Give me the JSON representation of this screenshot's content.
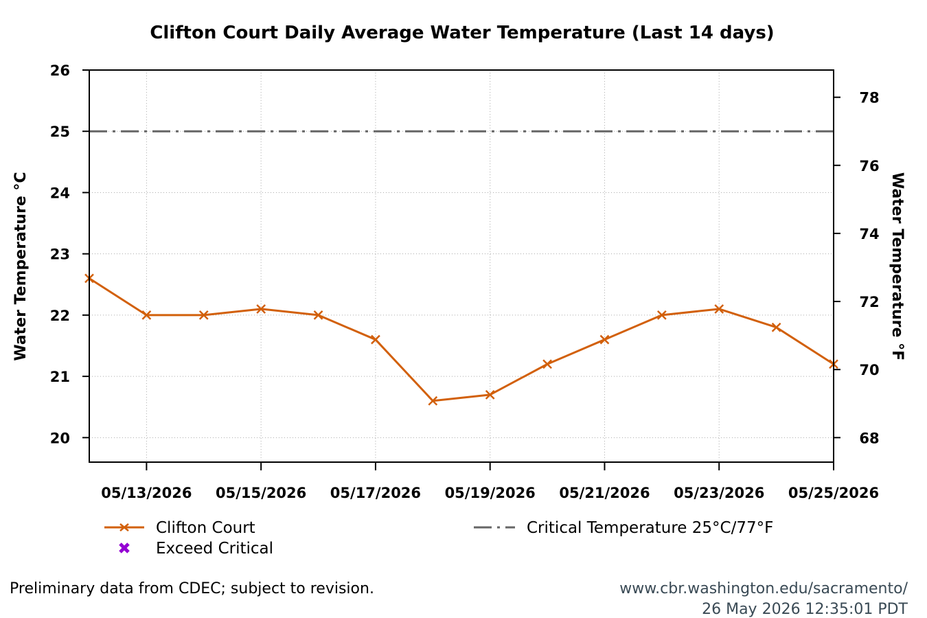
{
  "chart_data": {
    "type": "line",
    "title": "Clifton Court Daily Average Water Temperature (Last 14 days)",
    "ylabel": "Water Temperature °C",
    "ylabel_right": "Water Temperature °F",
    "xlabel": "",
    "ylim": [
      19.6,
      26
    ],
    "y_ticks": [
      20,
      21,
      22,
      23,
      24,
      25,
      26
    ],
    "y_tick_labels": [
      "20",
      "21",
      "22",
      "23",
      "24",
      "25",
      "26"
    ],
    "y2_ticks": [
      68,
      70,
      72,
      74,
      76,
      78
    ],
    "y2_tick_labels": [
      "68",
      "70",
      "72",
      "74",
      "76",
      "78"
    ],
    "x": [
      "05/12/2026",
      "05/13/2026",
      "05/14/2026",
      "05/15/2026",
      "05/16/2026",
      "05/17/2026",
      "05/18/2026",
      "05/19/2026",
      "05/20/2026",
      "05/21/2026",
      "05/22/2026",
      "05/23/2026",
      "05/24/2026",
      "05/25/2026"
    ],
    "x_tick_labels": [
      "05/13/2026",
      "05/15/2026",
      "05/17/2026",
      "05/19/2026",
      "05/21/2026",
      "05/23/2026",
      "05/25/2026"
    ],
    "grid": true,
    "series": [
      {
        "name": "Clifton Court",
        "color": "#d2600b",
        "marker": "x",
        "values": [
          22.6,
          22.0,
          22.0,
          22.1,
          22.0,
          21.6,
          20.6,
          20.7,
          21.2,
          21.6,
          22.0,
          22.1,
          21.8,
          21.2
        ]
      },
      {
        "name": "Critical Temperature 25°C/77°F",
        "color": "#666666",
        "style": "dash-dot",
        "values": [
          25,
          25,
          25,
          25,
          25,
          25,
          25,
          25,
          25,
          25,
          25,
          25,
          25,
          25
        ]
      }
    ],
    "legend": {
      "placement": "bottom",
      "items": [
        {
          "label": "Clifton Court",
          "color": "#d2600b",
          "symbol": "line-x"
        },
        {
          "label": "Exceed Critical",
          "color": "#9400d3",
          "symbol": "bold-x"
        },
        {
          "label": "Critical Temperature 25°C/77°F",
          "color": "#666666",
          "symbol": "dash-dot"
        }
      ]
    }
  },
  "footer": {
    "note": "Preliminary data from CDEC; subject to revision.",
    "url": "www.cbr.washington.edu/sacramento/",
    "timestamp": "26 May 2026 12:35:01 PDT"
  }
}
